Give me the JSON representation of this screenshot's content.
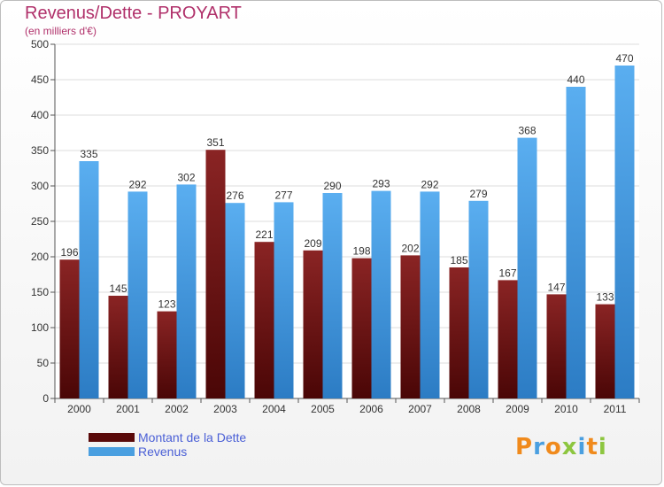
{
  "title": "Revenus/Dette - PROYART",
  "subtitle": "(en milliers d'€)",
  "colors": {
    "dette": "#7a1a1a",
    "revenus": "#4a9fe0",
    "title": "#b0306a",
    "legend_text": "#4a5fd6"
  },
  "legend": {
    "dette": "Montant de la Dette",
    "revenus": "Revenus"
  },
  "logo": {
    "text": "Proxiti"
  },
  "chart_data": {
    "type": "bar",
    "categories": [
      "2000",
      "2001",
      "2002",
      "2003",
      "2004",
      "2005",
      "2006",
      "2007",
      "2008",
      "2009",
      "2010",
      "2011"
    ],
    "series": [
      {
        "name": "Montant de la Dette",
        "values": [
          196,
          145,
          123,
          351,
          221,
          209,
          198,
          202,
          185,
          167,
          147,
          133
        ]
      },
      {
        "name": "Revenus",
        "values": [
          335,
          292,
          302,
          276,
          277,
          290,
          293,
          292,
          279,
          368,
          440,
          470
        ]
      }
    ],
    "ylim": [
      0,
      500
    ],
    "yticks": [
      0,
      50,
      100,
      150,
      200,
      250,
      300,
      350,
      400,
      450,
      500
    ],
    "grid": true,
    "legend_position": "bottom-left"
  }
}
